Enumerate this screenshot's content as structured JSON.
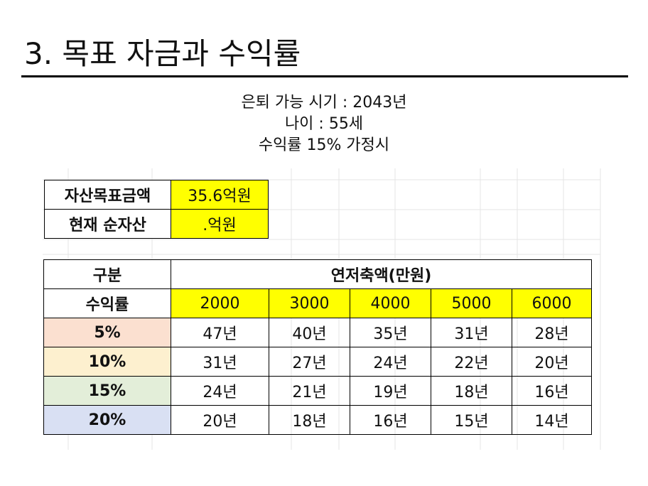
{
  "slide": {
    "title": "3. 목표 자금과 수익률",
    "subtitle_lines": [
      "은퇴 가능 시기 : 2043년",
      "나이 : 55세",
      "수익률 15% 가정시"
    ]
  },
  "asset_table": {
    "target_label": "자산목표금액",
    "target_value": "35.6억원",
    "current_label": "현재 순자산",
    "current_value": ".억원"
  },
  "savings_table": {
    "category_header": "구분",
    "savings_header": "연저축액(만원)",
    "rate_header": "수익률",
    "amounts": [
      "2000",
      "3000",
      "4000",
      "5000",
      "6000"
    ],
    "rows": [
      {
        "rate": "5%",
        "color": "#fbe0d0",
        "years": [
          "47년",
          "40년",
          "35년",
          "31년",
          "28년"
        ]
      },
      {
        "rate": "10%",
        "color": "#fdf0cf",
        "years": [
          "31년",
          "27년",
          "24년",
          "22년",
          "20년"
        ]
      },
      {
        "rate": "15%",
        "color": "#e3eed9",
        "years": [
          "24년",
          "21년",
          "19년",
          "18년",
          "16년"
        ]
      },
      {
        "rate": "20%",
        "color": "#d9e0f3",
        "years": [
          "20년",
          "18년",
          "16년",
          "15년",
          "14년"
        ]
      }
    ],
    "highlight_color": "#ffff00"
  }
}
